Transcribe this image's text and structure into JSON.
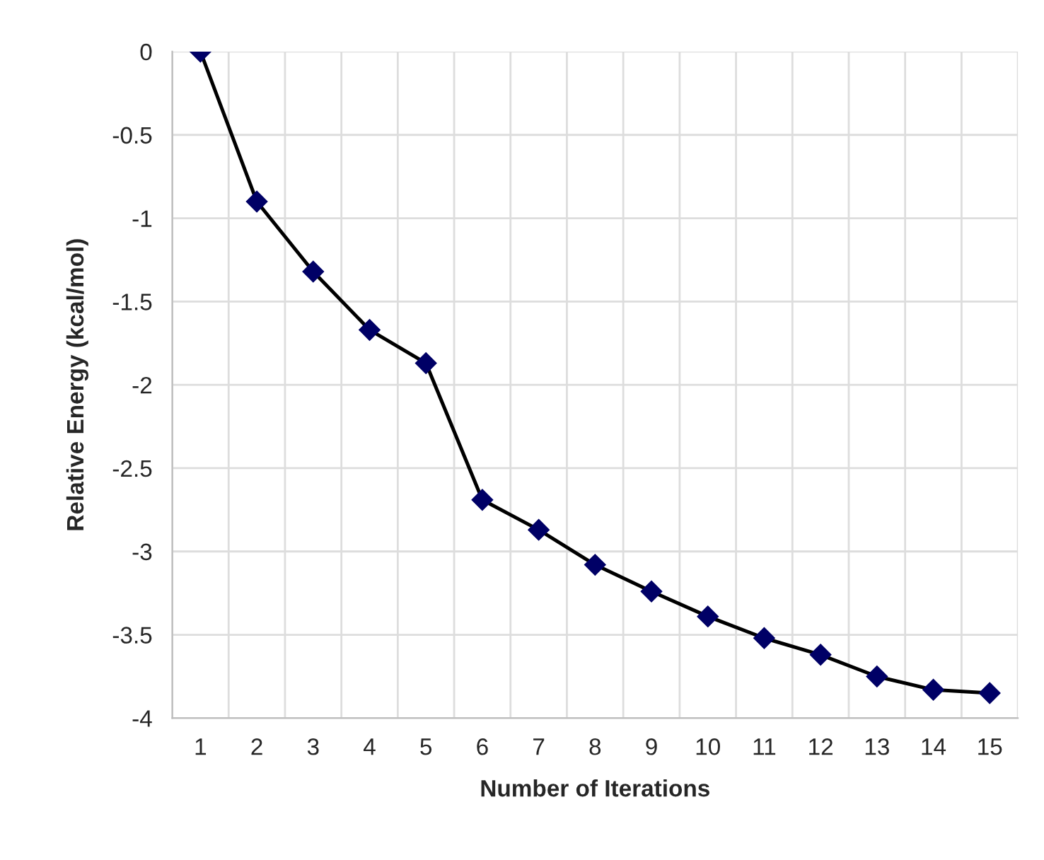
{
  "chart_data": {
    "type": "line",
    "xlabel": "Number of Iterations",
    "ylabel": "Relative Energy (kcal/mol)",
    "categories": [
      "1",
      "2",
      "3",
      "4",
      "5",
      "6",
      "7",
      "8",
      "9",
      "10",
      "11",
      "12",
      "13",
      "14",
      "15"
    ],
    "series": [
      {
        "color": "#000066",
        "values": [
          0,
          -0.9,
          -1.32,
          -1.67,
          -1.87,
          -2.69,
          -2.87,
          -3.08,
          -3.24,
          -3.39,
          -3.52,
          -3.62,
          -3.75,
          -3.83,
          -3.85
        ]
      }
    ],
    "ylim": [
      -4,
      0
    ],
    "yticks": [
      {
        "value": 0,
        "label": "0"
      },
      {
        "value": -0.5,
        "label": "-0.5"
      },
      {
        "value": -1,
        "label": "-1"
      },
      {
        "value": -1.5,
        "label": "-1.5"
      },
      {
        "value": -2,
        "label": "-2"
      },
      {
        "value": -2.5,
        "label": "-2.5"
      },
      {
        "value": -3,
        "label": "-3"
      },
      {
        "value": -3.5,
        "label": "-3.5"
      },
      {
        "value": -4,
        "label": "-4"
      }
    ],
    "grid": true,
    "marker": "diamond",
    "line_style": "solid"
  }
}
